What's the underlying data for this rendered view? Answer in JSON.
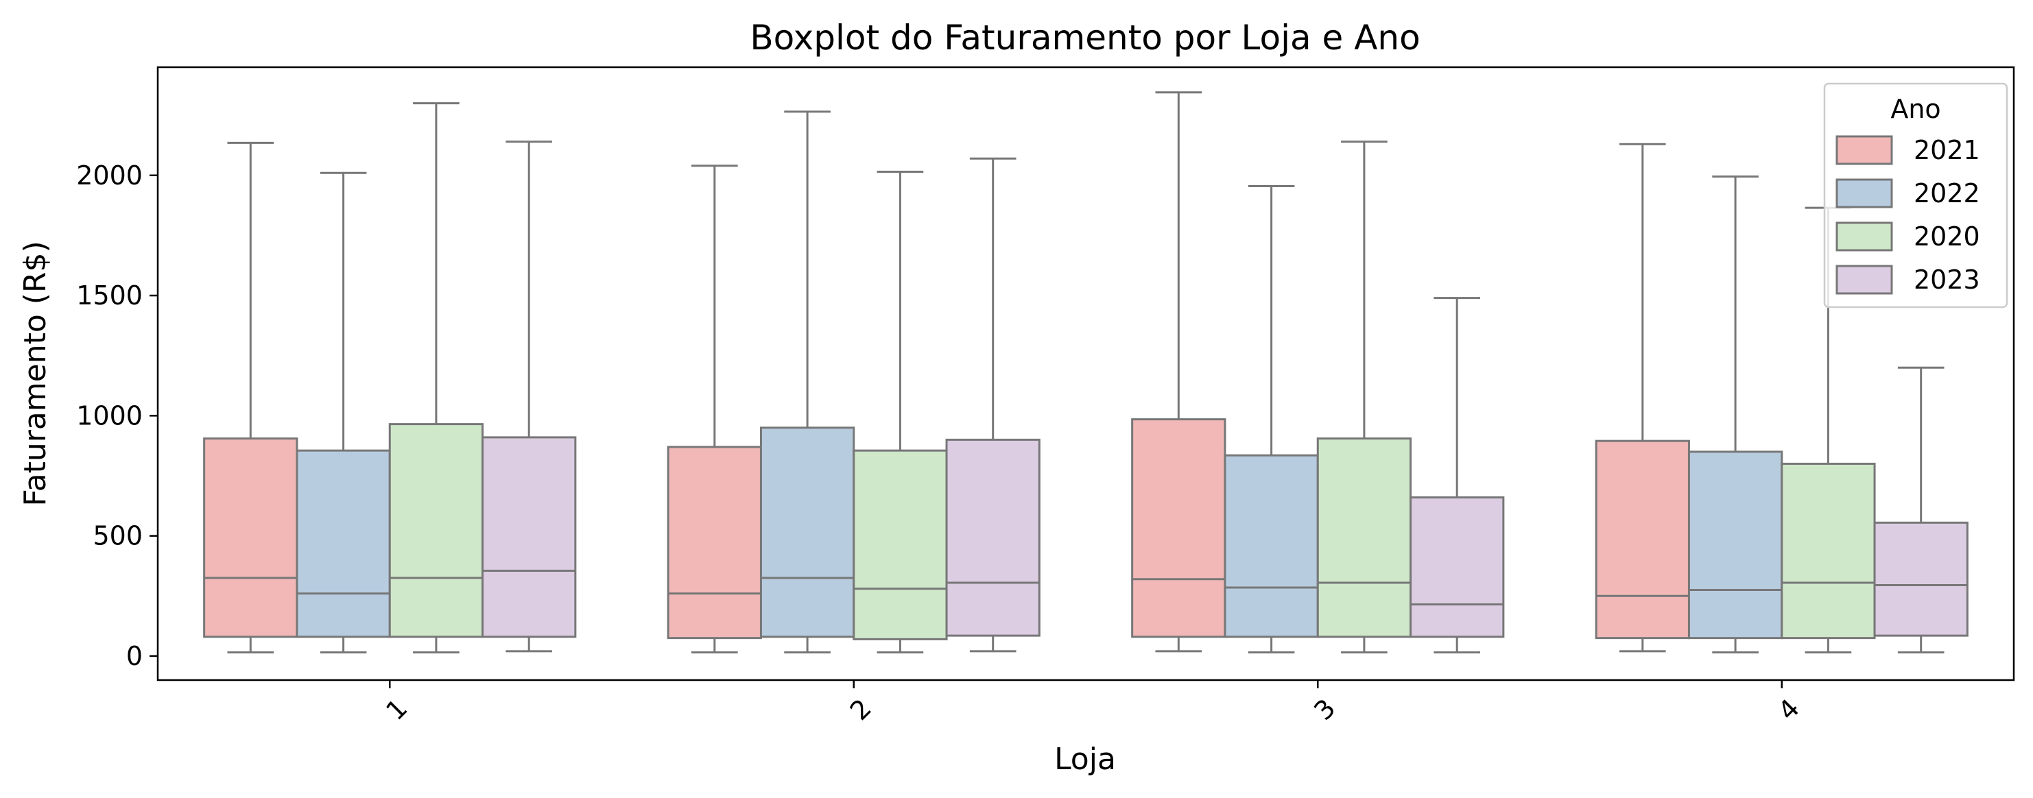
{
  "chart_data": {
    "type": "boxplot",
    "title": "Boxplot do Faturamento por Loja e Ano",
    "xlabel": "Loja",
    "ylabel": "Faturamento (R$)",
    "ylim": [
      -100,
      2450
    ],
    "yticks": [
      0,
      500,
      1000,
      1500,
      2000
    ],
    "categories": [
      "1",
      "2",
      "3",
      "4"
    ],
    "legend": {
      "title": "Ano",
      "position": "top-right"
    },
    "series": [
      {
        "name": "2021",
        "color": "#f2b8b8",
        "boxes": [
          {
            "min": 15,
            "q1": 80,
            "median": 325,
            "q3": 905,
            "max": 2135
          },
          {
            "min": 15,
            "q1": 75,
            "median": 260,
            "q3": 870,
            "max": 2040
          },
          {
            "min": 20,
            "q1": 80,
            "median": 320,
            "q3": 985,
            "max": 2345
          },
          {
            "min": 20,
            "q1": 75,
            "median": 250,
            "q3": 895,
            "max": 2130
          }
        ]
      },
      {
        "name": "2022",
        "color": "#b8cce0",
        "boxes": [
          {
            "min": 15,
            "q1": 80,
            "median": 260,
            "q3": 855,
            "max": 2010
          },
          {
            "min": 15,
            "q1": 80,
            "median": 325,
            "q3": 950,
            "max": 2265
          },
          {
            "min": 15,
            "q1": 80,
            "median": 285,
            "q3": 835,
            "max": 1955
          },
          {
            "min": 15,
            "q1": 75,
            "median": 275,
            "q3": 850,
            "max": 1995
          }
        ]
      },
      {
        "name": "2020",
        "color": "#cfe8ca",
        "boxes": [
          {
            "min": 15,
            "q1": 80,
            "median": 325,
            "q3": 965,
            "max": 2300
          },
          {
            "min": 15,
            "q1": 70,
            "median": 280,
            "q3": 855,
            "max": 2015
          },
          {
            "min": 15,
            "q1": 80,
            "median": 305,
            "q3": 905,
            "max": 2140
          },
          {
            "min": 15,
            "q1": 75,
            "median": 305,
            "q3": 800,
            "max": 1865
          }
        ]
      },
      {
        "name": "2023",
        "color": "#dccde3",
        "boxes": [
          {
            "min": 20,
            "q1": 80,
            "median": 355,
            "q3": 910,
            "max": 2140
          },
          {
            "min": 20,
            "q1": 85,
            "median": 305,
            "q3": 900,
            "max": 2070
          },
          {
            "min": 15,
            "q1": 80,
            "median": 215,
            "q3": 660,
            "max": 1490
          },
          {
            "min": 15,
            "q1": 85,
            "median": 295,
            "q3": 555,
            "max": 1200
          }
        ]
      }
    ]
  }
}
